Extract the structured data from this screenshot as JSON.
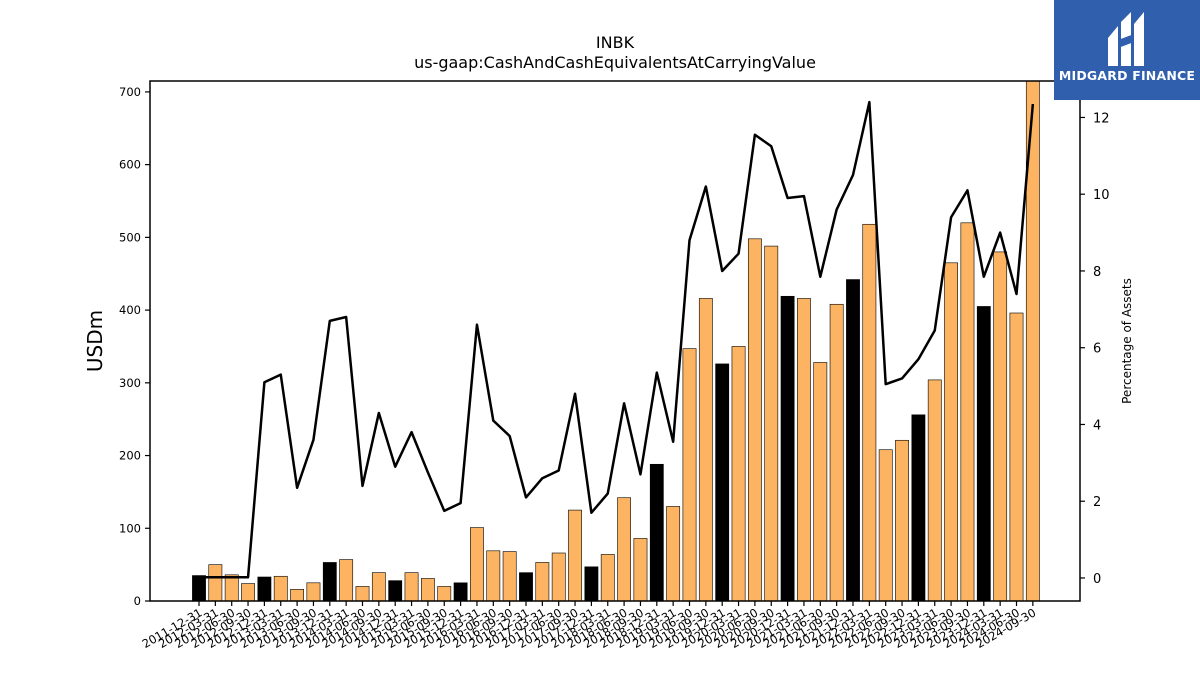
{
  "logo": {
    "brand_text": "MIDGARD FINANCE"
  },
  "chart_data": {
    "type": "bar",
    "title": "INBK",
    "subtitle": "us-gaap:CashAndCashEquivalentsAtCarryingValue",
    "ylabel": "USDm",
    "y2label": "Percentage of Assets",
    "ylim": [
      0,
      715
    ],
    "y2lim": [
      -0.6,
      12.95
    ],
    "yticks": [
      0,
      100,
      200,
      300,
      400,
      500,
      600,
      700
    ],
    "y2ticks": [
      0,
      2,
      4,
      6,
      8,
      10,
      12
    ],
    "colors": {
      "bar_default": "#fdb462",
      "bar_q4": "#000000",
      "line": "#000000"
    },
    "categories": [
      "2011-12-31",
      "2012-03-31",
      "2012-06-30",
      "2012-09-30",
      "2012-12-31",
      "2013-03-31",
      "2013-06-30",
      "2013-09-30",
      "2013-12-31",
      "2014-03-31",
      "2014-06-30",
      "2014-09-30",
      "2014-12-31",
      "2015-03-31",
      "2015-06-30",
      "2015-09-30",
      "2015-12-31",
      "2016-03-31",
      "2016-06-30",
      "2016-09-30",
      "2016-12-31",
      "2017-03-31",
      "2017-06-30",
      "2017-09-30",
      "2017-12-31",
      "2018-03-31",
      "2018-06-30",
      "2018-09-30",
      "2018-12-31",
      "2019-03-31",
      "2019-06-30",
      "2019-09-30",
      "2019-12-31",
      "2020-03-31",
      "2020-06-30",
      "2020-09-30",
      "2020-12-31",
      "2021-03-31",
      "2021-06-30",
      "2021-09-30",
      "2021-12-31",
      "2022-03-31",
      "2022-06-30",
      "2022-09-30",
      "2022-12-31",
      "2023-03-31",
      "2023-06-30",
      "2023-09-30",
      "2023-12-31",
      "2024-03-31",
      "2024-06-30",
      "2024-09-30"
    ],
    "series": [
      {
        "values": [
          35,
          50,
          36,
          24,
          33,
          34,
          16,
          25,
          53,
          57,
          20,
          39,
          28,
          39,
          31,
          20,
          25,
          101,
          69,
          68,
          39,
          53,
          66,
          125,
          47,
          64,
          142,
          86,
          188,
          130,
          347,
          416,
          326,
          350,
          498,
          488,
          419,
          416,
          328,
          408,
          442,
          518,
          208,
          221,
          256,
          304,
          465,
          520,
          405,
          480,
          396,
          715
        ]
      },
      {
        "axis": "right",
        "type": "line",
        "values": [
          0.02,
          0.02,
          0.02,
          0.02,
          5.1,
          5.3,
          2.35,
          3.6,
          6.7,
          6.8,
          2.4,
          4.3,
          2.9,
          3.8,
          2.75,
          1.75,
          1.95,
          6.6,
          4.1,
          3.7,
          2.1,
          2.6,
          2.8,
          4.8,
          1.7,
          2.2,
          4.55,
          2.7,
          5.35,
          3.55,
          8.8,
          10.2,
          8.0,
          8.45,
          11.55,
          11.25,
          9.9,
          9.95,
          7.85,
          9.6,
          10.5,
          12.4,
          5.05,
          5.2,
          5.7,
          6.45,
          9.4,
          10.1,
          7.85,
          9.0,
          7.4,
          12.35
        ]
      }
    ]
  }
}
